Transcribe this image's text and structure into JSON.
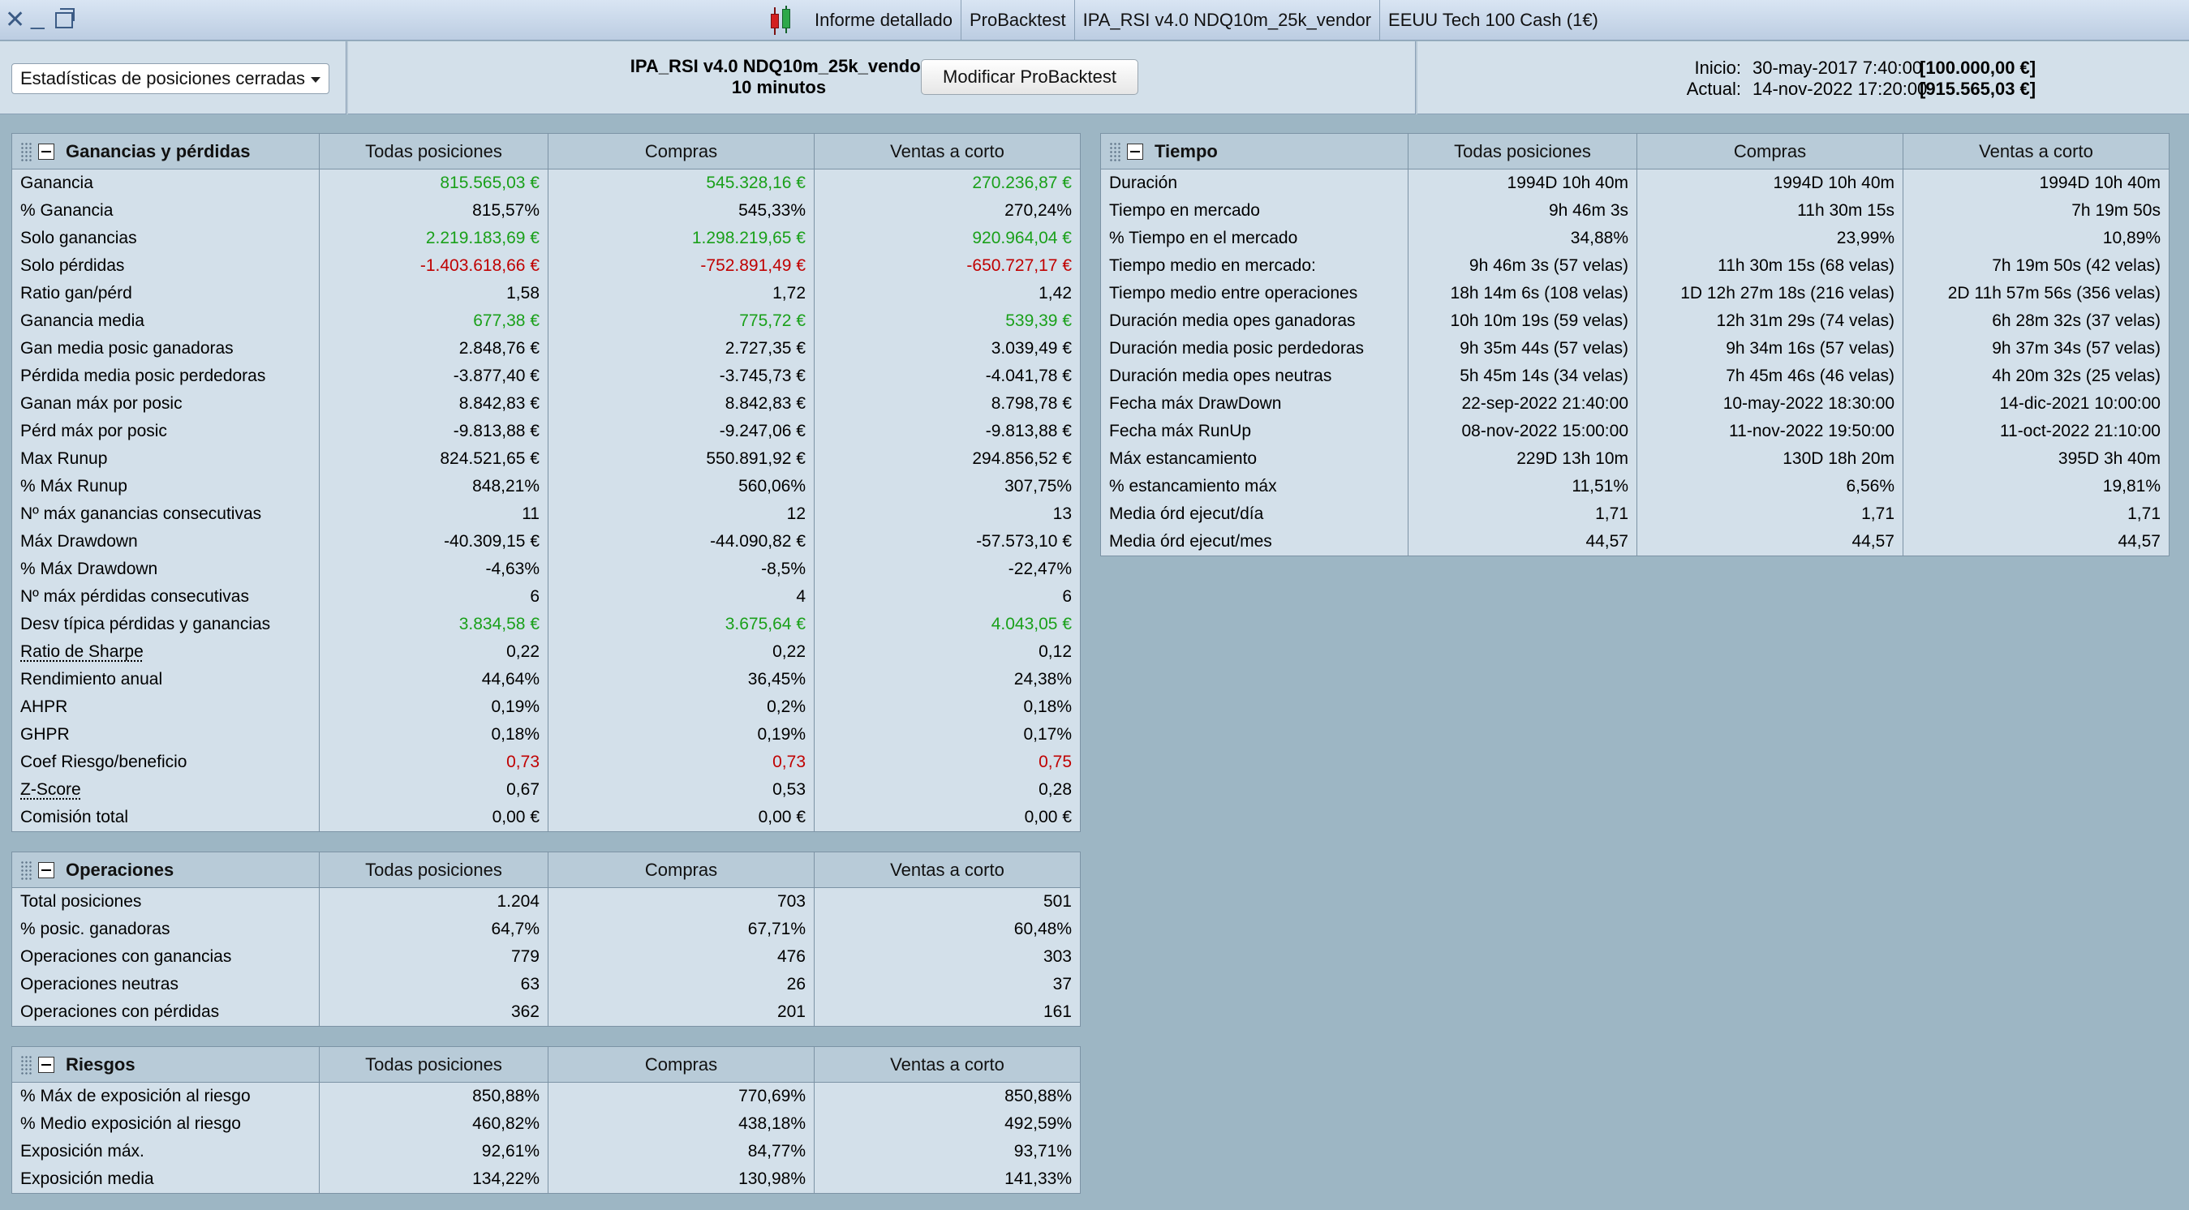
{
  "window": {
    "tabs": [
      "Informe detallado",
      "ProBacktest",
      "IPA_RSI v4.0 NDQ10m_25k_vendor",
      "EEUU Tech 100 Cash (1€)"
    ]
  },
  "header": {
    "dropdown_value": "Estadísticas de posiciones cerradas",
    "strategy_name": "IPA_RSI v4.0 NDQ10m_25k_vendor",
    "timeframe": "10 minutos",
    "modify_button": "Modificar ProBacktest",
    "start_label": "Inicio:",
    "start_date": "30-may-2017 7:40:00",
    "start_value": "[100.000,00 €]",
    "current_label": "Actual:",
    "current_date": "14-nov-2022 17:20:00",
    "current_value": "[915.565,03 €]"
  },
  "colors": {
    "positive": "#1aa01a",
    "negative": "#c00000"
  },
  "panels": {
    "ganancias": {
      "title": "Ganancias y pérdidas",
      "columns": [
        "Todas posiciones",
        "Compras",
        "Ventas a corto"
      ],
      "rows": [
        {
          "label": "Ganancia",
          "values": [
            "815.565,03 €",
            "545.328,16 €",
            "270.236,87 €"
          ],
          "tone": "pos"
        },
        {
          "label": "% Ganancia",
          "values": [
            "815,57%",
            "545,33%",
            "270,24%"
          ]
        },
        {
          "label": "Solo ganancias",
          "values": [
            "2.219.183,69 €",
            "1.298.219,65 €",
            "920.964,04 €"
          ],
          "tone": "pos"
        },
        {
          "label": "Solo pérdidas",
          "values": [
            "-1.403.618,66 €",
            "-752.891,49 €",
            "-650.727,17 €"
          ],
          "tone": "neg"
        },
        {
          "label": "Ratio gan/pérd",
          "values": [
            "1,58",
            "1,72",
            "1,42"
          ]
        },
        {
          "label": "Ganancia media",
          "values": [
            "677,38 €",
            "775,72 €",
            "539,39 €"
          ],
          "tone": "pos"
        },
        {
          "label": "Gan media posic ganadoras",
          "values": [
            "2.848,76 €",
            "2.727,35 €",
            "3.039,49 €"
          ]
        },
        {
          "label": "Pérdida media posic perdedoras",
          "values": [
            "-3.877,40 €",
            "-3.745,73 €",
            "-4.041,78 €"
          ]
        },
        {
          "label": "Ganan máx por posic",
          "values": [
            "8.842,83 €",
            "8.842,83 €",
            "8.798,78 €"
          ]
        },
        {
          "label": "Pérd máx por posic",
          "values": [
            "-9.813,88 €",
            "-9.247,06 €",
            "-9.813,88 €"
          ]
        },
        {
          "label": "Max Runup",
          "values": [
            "824.521,65 €",
            "550.891,92 €",
            "294.856,52 €"
          ]
        },
        {
          "label": "% Máx Runup",
          "values": [
            "848,21%",
            "560,06%",
            "307,75%"
          ]
        },
        {
          "label": "Nº máx ganancias consecutivas",
          "values": [
            "11",
            "12",
            "13"
          ]
        },
        {
          "label": "Máx Drawdown",
          "values": [
            "-40.309,15 €",
            "-44.090,82 €",
            "-57.573,10 €"
          ]
        },
        {
          "label": "% Máx Drawdown",
          "values": [
            "-4,63%",
            "-8,5%",
            "-22,47%"
          ]
        },
        {
          "label": "Nº máx pérdidas consecutivas",
          "values": [
            "6",
            "4",
            "6"
          ]
        },
        {
          "label": "Desv típica pérdidas y ganancias",
          "values": [
            "3.834,58 €",
            "3.675,64 €",
            "4.043,05 €"
          ],
          "tone": "pos"
        },
        {
          "label": "Ratio de Sharpe",
          "values": [
            "0,22",
            "0,22",
            "0,12"
          ],
          "underline": true
        },
        {
          "label": "Rendimiento anual",
          "values": [
            "44,64%",
            "36,45%",
            "24,38%"
          ]
        },
        {
          "label": "AHPR",
          "values": [
            "0,19%",
            "0,2%",
            "0,18%"
          ]
        },
        {
          "label": "GHPR",
          "values": [
            "0,18%",
            "0,19%",
            "0,17%"
          ]
        },
        {
          "label": "Coef Riesgo/beneficio",
          "values": [
            "0,73",
            "0,73",
            "0,75"
          ],
          "tone": "neg"
        },
        {
          "label": "Z-Score",
          "values": [
            "0,67",
            "0,53",
            "0,28"
          ],
          "underline": true
        },
        {
          "label": "Comisión total",
          "values": [
            "0,00 €",
            "0,00 €",
            "0,00 €"
          ]
        }
      ]
    },
    "operaciones": {
      "title": "Operaciones",
      "columns": [
        "Todas posiciones",
        "Compras",
        "Ventas a corto"
      ],
      "rows": [
        {
          "label": "Total posiciones",
          "values": [
            "1.204",
            "703",
            "501"
          ]
        },
        {
          "label": "% posic. ganadoras",
          "values": [
            "64,7%",
            "67,71%",
            "60,48%"
          ]
        },
        {
          "label": "Operaciones con ganancias",
          "values": [
            "779",
            "476",
            "303"
          ]
        },
        {
          "label": "Operaciones neutras",
          "values": [
            "63",
            "26",
            "37"
          ]
        },
        {
          "label": "Operaciones con pérdidas",
          "values": [
            "362",
            "201",
            "161"
          ]
        }
      ]
    },
    "riesgos": {
      "title": "Riesgos",
      "columns": [
        "Todas posiciones",
        "Compras",
        "Ventas a corto"
      ],
      "rows": [
        {
          "label": "% Máx de exposición al riesgo",
          "values": [
            "850,88%",
            "770,69%",
            "850,88%"
          ]
        },
        {
          "label": "% Medio exposición al riesgo",
          "values": [
            "460,82%",
            "438,18%",
            "492,59%"
          ]
        },
        {
          "label": "Exposición máx.",
          "values": [
            "92,61%",
            "84,77%",
            "93,71%"
          ]
        },
        {
          "label": "Exposición media",
          "values": [
            "134,22%",
            "130,98%",
            "141,33%"
          ]
        }
      ]
    },
    "tiempo": {
      "title": "Tiempo",
      "columns": [
        "Todas posiciones",
        "Compras",
        "Ventas a corto"
      ],
      "rows": [
        {
          "label": "Duración",
          "values": [
            "1994D 10h 40m",
            "1994D 10h 40m",
            "1994D 10h 40m"
          ]
        },
        {
          "label": "Tiempo en mercado",
          "values": [
            "9h 46m 3s",
            "11h 30m 15s",
            "7h 19m 50s"
          ]
        },
        {
          "label": "% Tiempo en el mercado",
          "values": [
            "34,88%",
            "23,99%",
            "10,89%"
          ]
        },
        {
          "label": "Tiempo medio en mercado:",
          "values": [
            "9h 46m 3s (57 velas)",
            "11h 30m 15s (68 velas)",
            "7h 19m 50s (42 velas)"
          ]
        },
        {
          "label": "Tiempo medio entre operaciones",
          "values": [
            "18h 14m 6s (108 velas)",
            "1D 12h 27m 18s (216 velas)",
            "2D 11h 57m 56s (356 velas)"
          ]
        },
        {
          "label": "Duración media opes ganadoras",
          "values": [
            "10h 10m 19s (59 velas)",
            "12h 31m 29s (74 velas)",
            "6h 28m 32s (37 velas)"
          ]
        },
        {
          "label": "Duración media posic perdedoras",
          "values": [
            "9h 35m 44s (57 velas)",
            "9h 34m 16s (57 velas)",
            "9h 37m 34s (57 velas)"
          ]
        },
        {
          "label": "Duración media opes neutras",
          "values": [
            "5h 45m 14s (34 velas)",
            "7h 45m 46s (46 velas)",
            "4h 20m 32s (25 velas)"
          ]
        },
        {
          "label": "Fecha máx DrawDown",
          "values": [
            "22-sep-2022 21:40:00",
            "10-may-2022 18:30:00",
            "14-dic-2021 10:00:00"
          ]
        },
        {
          "label": "Fecha máx RunUp",
          "values": [
            "08-nov-2022 15:00:00",
            "11-nov-2022 19:50:00",
            "11-oct-2022 21:10:00"
          ]
        },
        {
          "label": "Máx estancamiento",
          "values": [
            "229D 13h 10m",
            "130D 18h 20m",
            "395D 3h 40m"
          ]
        },
        {
          "label": "% estancamiento máx",
          "values": [
            "11,51%",
            "6,56%",
            "19,81%"
          ]
        },
        {
          "label": "Media órd ejecut/día",
          "values": [
            "1,71",
            "1,71",
            "1,71"
          ]
        },
        {
          "label": "Media órd ejecut/mes",
          "values": [
            "44,57",
            "44,57",
            "44,57"
          ]
        }
      ]
    }
  }
}
